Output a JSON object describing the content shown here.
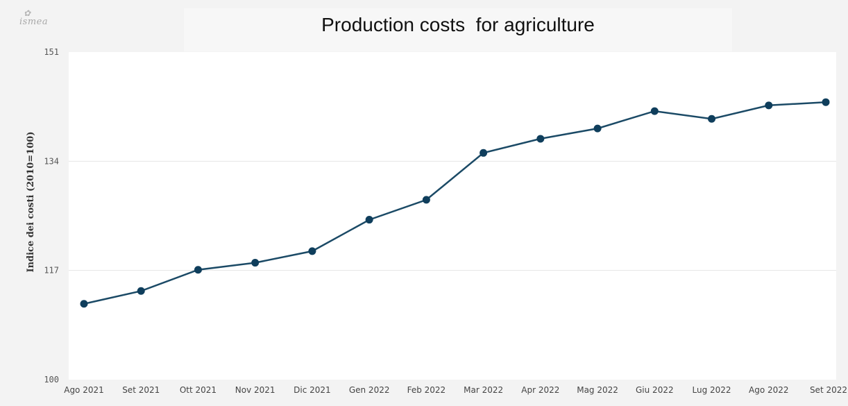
{
  "logo": {
    "text": "ismea"
  },
  "chart_data": {
    "type": "line",
    "title": "Production costs  for agriculture",
    "ylabel": "Indice dei costi (2010=100)",
    "xlabel": "",
    "ylim": [
      100,
      151
    ],
    "yticks": [
      100,
      117,
      134,
      151
    ],
    "grid": true,
    "legend": "none",
    "categories": [
      "Ago 2021",
      "Set 2021",
      "Ott 2021",
      "Nov 2021",
      "Dic 2021",
      "Gen 2022",
      "Feb 2022",
      "Mar 2022",
      "Apr 2022",
      "Mag 2022",
      "Giu 2022",
      "Lug 2022",
      "Ago 2022",
      "Set 2022"
    ],
    "values": [
      111.8,
      113.8,
      117.1,
      118.2,
      120.0,
      124.9,
      128.0,
      135.3,
      137.5,
      139.1,
      141.8,
      140.6,
      142.7,
      143.2
    ],
    "colors": {
      "line": "#1b4a66",
      "marker": "#0f3e5c",
      "grid": "#e4e4e4",
      "plot_bg": "#ffffff"
    }
  }
}
